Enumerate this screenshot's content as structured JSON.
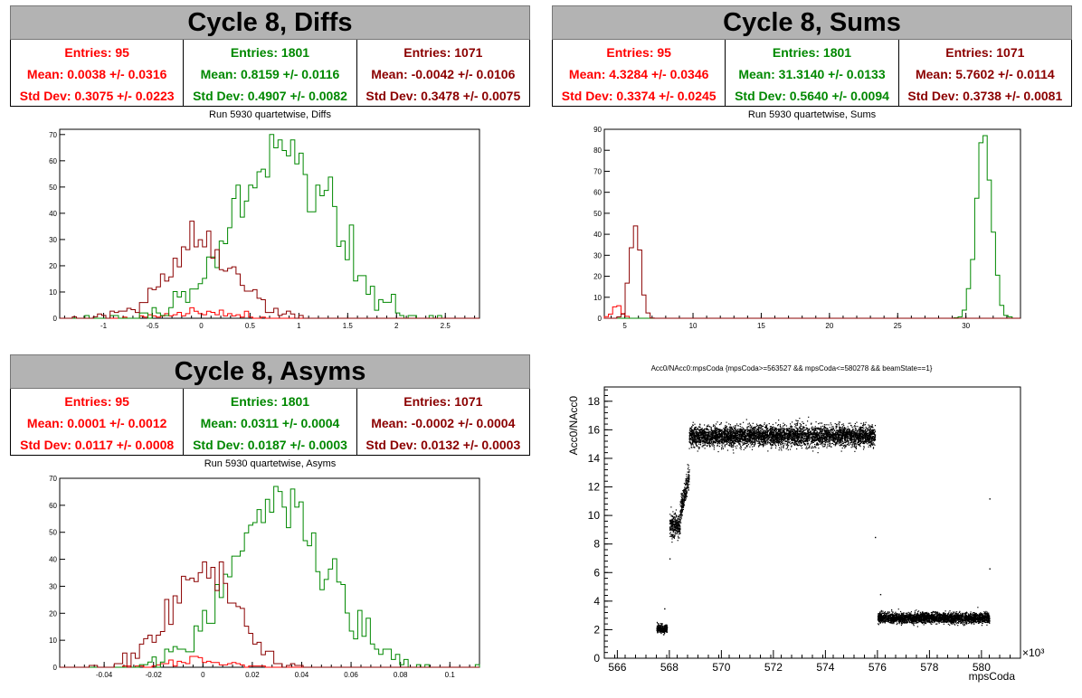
{
  "colors": {
    "red": "#ff0000",
    "green": "#008800",
    "darkred": "#8b0000",
    "banner": "#b3b3b3"
  },
  "panels": {
    "diffs": {
      "banner": "Cycle 8, Diffs",
      "subtitle": "Run 5930 quartetwise, Diffs",
      "stats": [
        {
          "entries": "Entries: 95",
          "mean": "Mean: 0.0038 +/- 0.0316",
          "std": "Std Dev: 0.3075 +/- 0.0223"
        },
        {
          "entries": "Entries: 1801",
          "mean": "Mean: 0.8159 +/- 0.0116",
          "std": "Std Dev: 0.4907 +/- 0.0082"
        },
        {
          "entries": "Entries: 1071",
          "mean": "Mean: -0.0042 +/- 0.0106",
          "std": "Std Dev: 0.3478 +/- 0.0075"
        }
      ]
    },
    "sums": {
      "banner": "Cycle 8, Sums",
      "subtitle": "Run 5930 quartetwise, Sums",
      "stats": [
        {
          "entries": "Entries: 95",
          "mean": "Mean: 4.3284 +/- 0.0346",
          "std": "Std Dev: 0.3374 +/- 0.0245"
        },
        {
          "entries": "Entries: 1801",
          "mean": "Mean: 31.3140 +/- 0.0133",
          "std": "Std Dev: 0.5640 +/- 0.0094"
        },
        {
          "entries": "Entries: 1071",
          "mean": "Mean: 5.7602 +/- 0.0114",
          "std": "Std Dev: 0.3738 +/- 0.0081"
        }
      ]
    },
    "asyms": {
      "banner": "Cycle 8, Asyms",
      "subtitle": "Run 5930 quartetwise, Asyms",
      "stats": [
        {
          "entries": "Entries: 95",
          "mean": "Mean: 0.0001 +/- 0.0012",
          "std": "Std Dev: 0.0117 +/- 0.0008"
        },
        {
          "entries": "Entries: 1801",
          "mean": "Mean: 0.0311 +/- 0.0004",
          "std": "Std Dev: 0.0187 +/- 0.0003"
        },
        {
          "entries": "Entries: 1071",
          "mean": "Mean: -0.0002 +/- 0.0004",
          "std": "Std Dev: 0.0132 +/- 0.0003"
        }
      ]
    },
    "scatter": {
      "subtitle": "Acc0/NAcc0:mpsCoda {mpsCoda>=563527 && mpsCoda<=580278 && beamState==1}"
    }
  },
  "chart_data": [
    {
      "type": "histogram",
      "title": "Run 5930 quartetwise, Diffs",
      "xlim": [
        -1.45,
        2.85
      ],
      "ylim": [
        0,
        72
      ],
      "xticks": [
        -1,
        -0.5,
        0,
        0.5,
        1,
        1.5,
        2,
        2.5
      ],
      "xtick_labels": [
        "-1",
        "-0.5",
        "0",
        "0.5",
        "1",
        "1.5",
        "2",
        "2.5"
      ],
      "yticks": [
        0,
        10,
        20,
        30,
        40,
        50,
        60,
        70
      ],
      "series": [
        {
          "color": "red",
          "mean": 0.0038,
          "std": 0.3075,
          "entries": 95,
          "peak": 4
        },
        {
          "color": "green",
          "mean": 0.8159,
          "std": 0.4907,
          "entries": 1801,
          "peak": 70
        },
        {
          "color": "darkred",
          "mean": -0.0042,
          "std": 0.3478,
          "entries": 1071,
          "peak": 37
        }
      ]
    },
    {
      "type": "histogram",
      "title": "Run 5930 quartetwise, Sums",
      "xlim": [
        3.5,
        34
      ],
      "ylim": [
        0,
        90
      ],
      "xticks": [
        5,
        10,
        15,
        20,
        25,
        30
      ],
      "xtick_labels": [
        "5",
        "10",
        "15",
        "20",
        "25",
        "30"
      ],
      "yticks": [
        0,
        10,
        20,
        30,
        40,
        50,
        60,
        70,
        80,
        90
      ],
      "series": [
        {
          "color": "red",
          "mean": 4.3284,
          "std": 0.3374,
          "entries": 95,
          "peak": 6
        },
        {
          "color": "green",
          "mean": 31.314,
          "std": 0.564,
          "entries": 1801,
          "peak": 87
        },
        {
          "color": "darkred",
          "mean": 5.7602,
          "std": 0.3738,
          "entries": 1071,
          "peak": 44
        }
      ]
    },
    {
      "type": "histogram",
      "title": "Run 5930 quartetwise, Asyms",
      "xlim": [
        -0.058,
        0.112
      ],
      "ylim": [
        0,
        70
      ],
      "xticks": [
        -0.04,
        -0.02,
        0,
        0.02,
        0.04,
        0.06,
        0.08,
        0.1
      ],
      "xtick_labels": [
        "-0.04",
        "-0.02",
        "0",
        "0.02",
        "0.04",
        "0.06",
        "0.08",
        "0.1"
      ],
      "yticks": [
        0,
        10,
        20,
        30,
        40,
        50,
        60,
        70
      ],
      "series": [
        {
          "color": "red",
          "mean": 0.0001,
          "std": 0.0117,
          "entries": 95,
          "peak": 4
        },
        {
          "color": "green",
          "mean": 0.0311,
          "std": 0.0187,
          "entries": 1801,
          "peak": 67
        },
        {
          "color": "darkred",
          "mean": -0.0002,
          "std": 0.0132,
          "entries": 1071,
          "peak": 39
        }
      ]
    },
    {
      "type": "scatter",
      "title": "Acc0/NAcc0:mpsCoda {mpsCoda>=563527 && mpsCoda<=580278 && beamState==1}",
      "xlabel": "mpsCoda",
      "ylabel": "Acc0/NAcc0",
      "x_multiplier": "×10³",
      "xlim": [
        565.5,
        581.5
      ],
      "ylim": [
        0,
        19
      ],
      "xticks": [
        566,
        568,
        570,
        572,
        574,
        576,
        578,
        580
      ],
      "xtick_labels": [
        "566",
        "568",
        "570",
        "572",
        "574",
        "576",
        "578",
        "580"
      ],
      "yticks": [
        0,
        2,
        4,
        6,
        8,
        10,
        12,
        14,
        16,
        18
      ],
      "ytick_labels": [
        "0",
        "2",
        "4",
        "6",
        "8",
        "10",
        "12",
        "14",
        "16",
        "18"
      ],
      "clusters": [
        {
          "x": [
            567.5,
            567.9
          ],
          "y_center": 2.1,
          "y_spread": 0.3
        },
        {
          "x": [
            568.0,
            568.4
          ],
          "y_center": 9.3,
          "y_spread": 0.8
        },
        {
          "x": [
            568.4,
            568.75
          ],
          "y_center": 11.5,
          "y_spread": 1.1
        },
        {
          "x": [
            568.75,
            575.9
          ],
          "y_center": 15.6,
          "y_spread": 0.7
        },
        {
          "x": [
            576.0,
            580.3
          ],
          "y_center": 2.85,
          "y_spread": 0.35
        }
      ]
    }
  ]
}
